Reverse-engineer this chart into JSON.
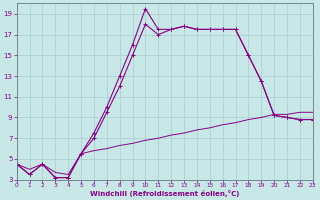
{
  "xlabel": "Windchill (Refroidissement éolien,°C)",
  "background_color": "#c8e8e8",
  "line_color": "#880088",
  "grid_color": "#a8cccc",
  "xlim": [
    0,
    23
  ],
  "ylim": [
    3,
    20
  ],
  "xticks": [
    0,
    1,
    2,
    3,
    4,
    5,
    6,
    7,
    8,
    9,
    10,
    11,
    12,
    13,
    14,
    15,
    16,
    17,
    18,
    19,
    20,
    21,
    22,
    23
  ],
  "yticks": [
    3,
    5,
    7,
    9,
    11,
    13,
    15,
    17,
    19
  ],
  "line1_x": [
    0,
    1,
    2,
    3,
    4,
    5,
    6,
    7,
    8,
    9,
    10,
    11,
    12,
    13,
    14,
    15,
    16,
    17,
    18,
    19,
    20,
    21,
    22,
    23
  ],
  "line1_y": [
    4.5,
    3.5,
    4.5,
    3.2,
    3.2,
    5.5,
    7.5,
    10.0,
    13.0,
    16.0,
    19.5,
    17.5,
    17.5,
    17.8,
    17.5,
    17.5,
    17.5,
    17.5,
    15.0,
    12.5,
    9.2,
    9.0,
    8.8,
    8.8
  ],
  "line2_x": [
    0,
    1,
    2,
    3,
    4,
    5,
    6,
    7,
    8,
    9,
    10,
    11,
    12,
    13,
    14,
    15,
    16,
    17,
    18,
    19,
    20,
    21,
    22,
    23
  ],
  "line2_y": [
    4.5,
    3.5,
    4.5,
    3.2,
    3.2,
    5.5,
    7.0,
    9.5,
    12.0,
    15.0,
    18.0,
    17.0,
    17.5,
    17.8,
    17.5,
    17.5,
    17.5,
    17.5,
    15.0,
    12.5,
    9.2,
    9.0,
    8.8,
    8.8
  ],
  "line3_x": [
    0,
    1,
    2,
    3,
    4,
    5,
    6,
    7,
    8,
    9,
    10,
    11,
    12,
    13,
    14,
    15,
    16,
    17,
    18,
    19,
    20,
    21,
    22,
    23
  ],
  "line3_y": [
    4.5,
    4.0,
    4.5,
    3.7,
    3.5,
    5.5,
    5.8,
    6.0,
    6.3,
    6.5,
    6.8,
    7.0,
    7.3,
    7.5,
    7.8,
    8.0,
    8.3,
    8.5,
    8.8,
    9.0,
    9.3,
    9.3,
    9.5,
    9.5
  ]
}
